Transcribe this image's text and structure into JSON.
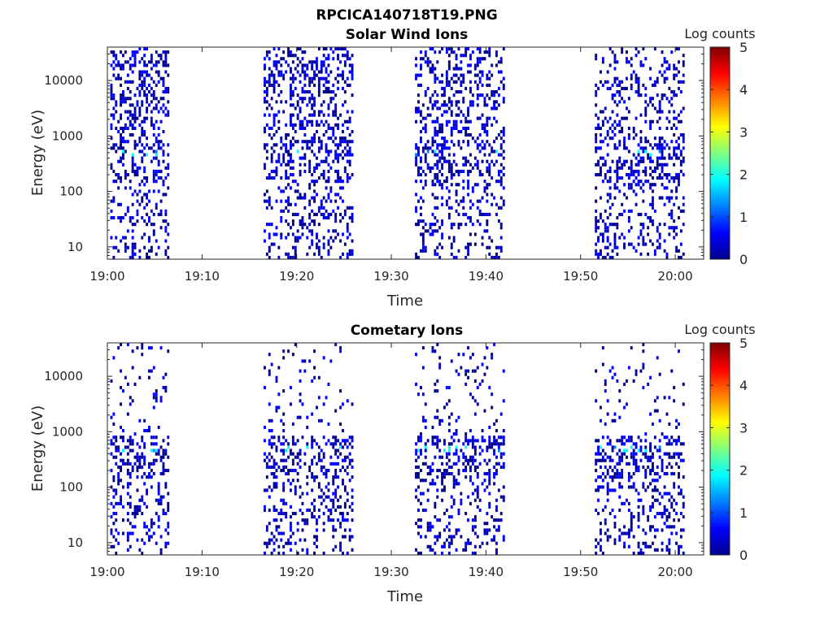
{
  "figure": {
    "title": "RPCICA140718T19.PNG"
  },
  "colormap": [
    "#00008f",
    "#0000ff",
    "#0080ff",
    "#00ffff",
    "#80ff80",
    "#ffff00",
    "#ff8000",
    "#ff0000",
    "#800000"
  ],
  "chart_data": [
    {
      "type": "heatmap",
      "title": "Solar Wind Ions",
      "xlabel": "Time",
      "ylabel": "Energy (eV)",
      "xlim": [
        "19:00",
        "20:03"
      ],
      "ylim": [
        6,
        40000
      ],
      "yscale": "log",
      "xticks": [
        "19:00",
        "19:10",
        "19:20",
        "19:30",
        "19:40",
        "19:50",
        "20:00"
      ],
      "yticks": [
        "10",
        "100",
        "1000",
        "10000"
      ],
      "colorbar": {
        "label": "Log counts",
        "min": 0,
        "max": 5,
        "ticks": [
          "0",
          "1",
          "2",
          "3",
          "4",
          "5"
        ]
      },
      "data_intervals": [
        {
          "start": "19:00.3",
          "end": "19:06.5",
          "high_energy_density": 0.55
        },
        {
          "start": "19:16.5",
          "end": "19:26.0",
          "high_energy_density": 0.55
        },
        {
          "start": "19:32.5",
          "end": "19:42.0",
          "high_energy_density": 0.5
        },
        {
          "start": "19:51.5",
          "end": "20:01.0",
          "high_energy_density": 0.35
        }
      ],
      "typical_log_counts": 0.3,
      "peak_log_counts": 2.0,
      "peak_energy_ev": 500
    },
    {
      "type": "heatmap",
      "title": "Cometary Ions",
      "xlabel": "Time",
      "ylabel": "Energy (eV)",
      "xlim": [
        "19:00",
        "20:03"
      ],
      "ylim": [
        6,
        40000
      ],
      "yscale": "log",
      "xticks": [
        "19:00",
        "19:10",
        "19:20",
        "19:30",
        "19:40",
        "19:50",
        "20:00"
      ],
      "yticks": [
        "10",
        "100",
        "1000",
        "10000"
      ],
      "colorbar": {
        "label": "Log counts",
        "min": 0,
        "max": 5,
        "ticks": [
          "0",
          "1",
          "2",
          "3",
          "4",
          "5"
        ]
      },
      "data_intervals": [
        {
          "start": "19:00.3",
          "end": "19:06.5",
          "high_energy_density": 0.12
        },
        {
          "start": "19:16.5",
          "end": "19:26.0",
          "high_energy_density": 0.12
        },
        {
          "start": "19:32.5",
          "end": "19:42.0",
          "high_energy_density": 0.12
        },
        {
          "start": "19:51.5",
          "end": "20:01.0",
          "high_energy_density": 0.08
        }
      ],
      "typical_log_counts": 0.3,
      "peak_log_counts": 2.0,
      "peak_energy_ev": 500
    }
  ]
}
